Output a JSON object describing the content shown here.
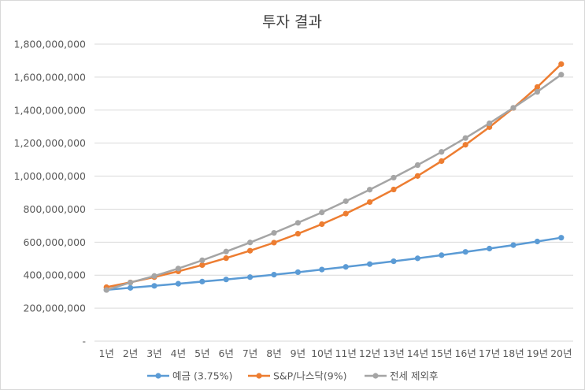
{
  "chart_data": {
    "type": "line",
    "title": "투자 결과",
    "categories": [
      "1년",
      "2년",
      "3년",
      "4년",
      "5년",
      "6년",
      "7년",
      "8년",
      "9년",
      "10년",
      "11년",
      "12년",
      "13년",
      "14년",
      "15년",
      "16년",
      "17년",
      "18년",
      "19년",
      "20년"
    ],
    "y_ticks": [
      "-",
      "200,000,000",
      "400,000,000",
      "600,000,000",
      "800,000,000",
      "1,000,000,000",
      "1,200,000,000",
      "1,400,000,000",
      "1,600,000,000",
      "1,800,000,000"
    ],
    "ylim": [
      0,
      1800000000
    ],
    "grid": true,
    "legend_position": "bottom",
    "series": [
      {
        "name": "예금 (3.75%)",
        "color": "#5b9bd5",
        "values": [
          311000000,
          323000000,
          335000000,
          348000000,
          361000000,
          374000000,
          388000000,
          403000000,
          418000000,
          434000000,
          450000000,
          467000000,
          484000000,
          502000000,
          521000000,
          541000000,
          561000000,
          582000000,
          604000000,
          627000000
        ]
      },
      {
        "name": "S&P/나스닥(9%)",
        "color": "#ed7d31",
        "values": [
          327000000,
          356000000,
          388000000,
          423000000,
          461000000,
          503000000,
          548000000,
          597000000,
          651000000,
          709000000,
          773000000,
          843000000,
          919000000,
          1001000000,
          1091000000,
          1190000000,
          1297000000,
          1413000000,
          1540000000,
          1679000000
        ]
      },
      {
        "name": "전세 제외후",
        "color": "#a5a5a5",
        "values": [
          310000000,
          355000000,
          395000000,
          440000000,
          490000000,
          543000000,
          598000000,
          656000000,
          717000000,
          780000000,
          848000000,
          918000000,
          991000000,
          1067000000,
          1147000000,
          1231000000,
          1320000000,
          1414000000,
          1511000000,
          1615000000
        ]
      }
    ]
  }
}
